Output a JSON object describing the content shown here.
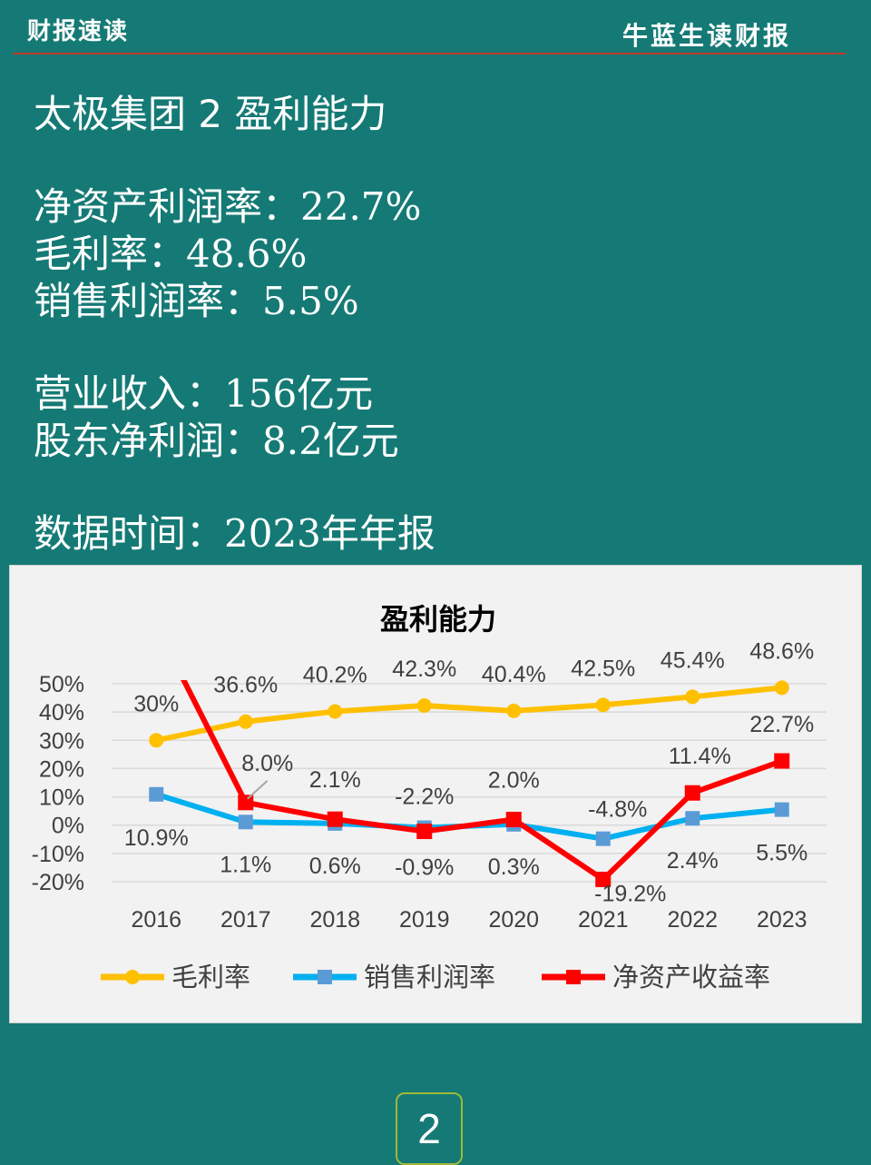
{
  "header": {
    "left": "财报速读",
    "right": "牛蓝生读财报"
  },
  "content": {
    "title": "太极集团 2 盈利能力",
    "metrics": [
      {
        "label": "净资产利润率：",
        "value": "22.7%"
      },
      {
        "label": "毛利率：",
        "value": "48.6%"
      },
      {
        "label": "销售利润率：",
        "value": "5.5%"
      }
    ],
    "financials": [
      {
        "label": "营业收入：",
        "value": "156亿元"
      },
      {
        "label": "股东净利润：",
        "value": "8.2亿元"
      }
    ],
    "date": {
      "label": "数据时间：",
      "value": "2023年年报"
    }
  },
  "page_number": "2",
  "chart_data": {
    "type": "line",
    "title": "盈利能力",
    "categories": [
      "2016",
      "2017",
      "2018",
      "2019",
      "2020",
      "2021",
      "2022",
      "2023"
    ],
    "yticks": [
      "50%",
      "40%",
      "30%",
      "20%",
      "10%",
      "0%",
      "-10%",
      "-20%"
    ],
    "ylim": [
      -20,
      50
    ],
    "grid": true,
    "legend_position": "bottom",
    "series": [
      {
        "name": "毛利率",
        "color": "#ffc000",
        "marker": "circle",
        "values": [
          30,
          36.6,
          40.2,
          42.3,
          40.4,
          42.5,
          45.4,
          48.6
        ],
        "labels": [
          "30%",
          "36.6%",
          "40.2%",
          "42.3%",
          "40.4%",
          "42.5%",
          "45.4%",
          "48.6%"
        ]
      },
      {
        "name": "销售利润率",
        "color": "#00b0f0",
        "marker": "square",
        "values": [
          10.9,
          1.1,
          0.6,
          -0.9,
          0.3,
          -4.8,
          2.4,
          5.5
        ],
        "labels": [
          "10.9%",
          "1.1%",
          "0.6%",
          "-0.9%",
          "0.3%",
          "-4.8%",
          "2.4%",
          "5.5%"
        ]
      },
      {
        "name": "净资产收益率",
        "color": "#ff0000",
        "marker": "square",
        "values": [
          null,
          8.0,
          2.1,
          -2.2,
          2.0,
          -19.2,
          11.4,
          22.7
        ],
        "labels": [
          "",
          "8.0%",
          "2.1%",
          "-2.2%",
          "2.0%",
          "-19.2%",
          "11.4%",
          "22.7%"
        ]
      }
    ]
  }
}
